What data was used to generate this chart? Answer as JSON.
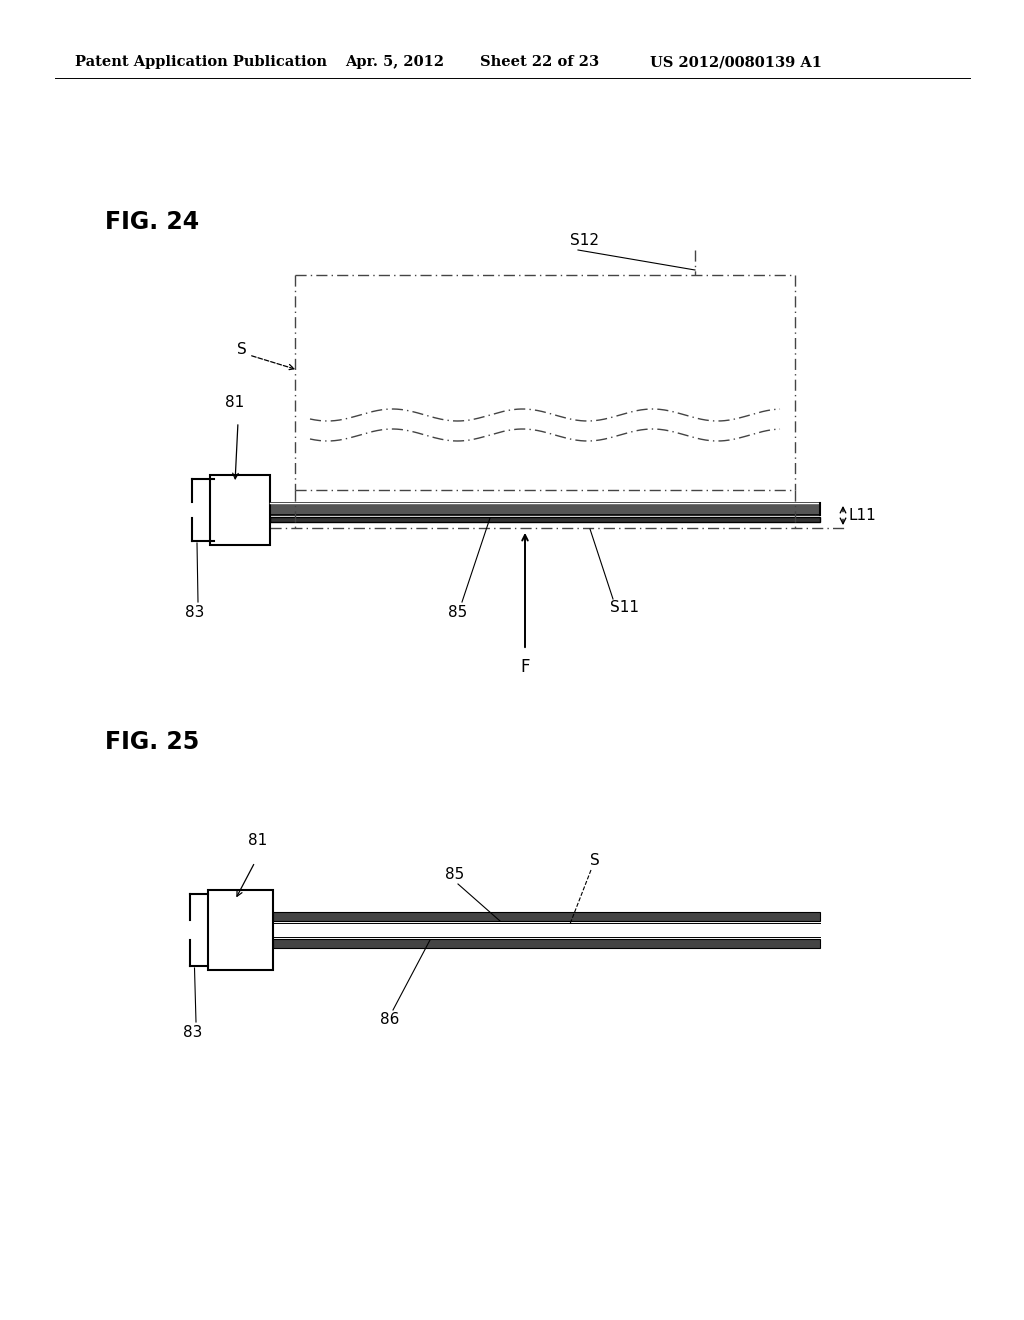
{
  "background_color": "#ffffff",
  "header_text": "Patent Application Publication",
  "header_date": "Apr. 5, 2012",
  "header_sheet": "Sheet 22 of 23",
  "header_patent": "US 2012/0080139 A1",
  "fig24_label": "FIG. 24",
  "fig25_label": "FIG. 25",
  "line_color": "#000000",
  "dash_dot_color": "#444444"
}
